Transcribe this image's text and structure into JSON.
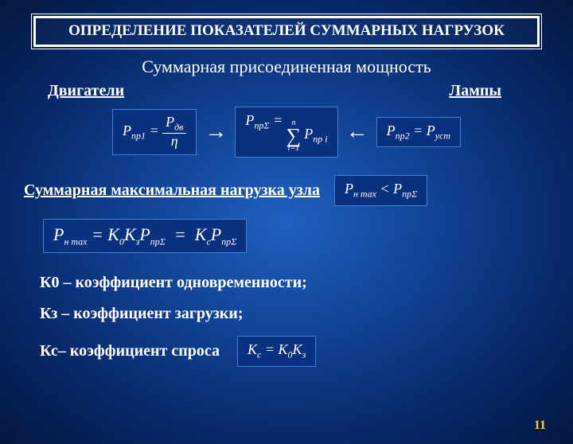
{
  "title": "ОПРЕДЕЛЕНИЕ ПОКАЗАТЕЛЕЙ СУММАРНЫХ НАГРУЗОК",
  "subtitle": "Суммарная присоединенная мощность",
  "labels": {
    "motors": "Двигатели",
    "lamps": "Лампы"
  },
  "formulas": {
    "f1_lhs": "P",
    "f1_lhs_sub": "пр1",
    "f1_num": "P",
    "f1_num_sub": "дв",
    "f1_den": "η",
    "f2_lhs": "P",
    "f2_lhs_sub": "прΣ",
    "f2_sum_top": "n",
    "f2_sum_bot": "i=1",
    "f2_rhs": "P",
    "f2_rhs_sub": "пр i",
    "f3_lhs": "P",
    "f3_lhs_sub": "пр2",
    "f3_rhs": "P",
    "f3_rhs_sub": "уст",
    "sec2": "Суммарная максимальная нагрузка узла",
    "f4_l": "P",
    "f4_l_sub": "н max",
    "f4_r": "P",
    "f4_r_sub": "прΣ",
    "f5_l": "P",
    "f5_l_sub": "н max",
    "f5_m1": "K",
    "f5_m1_sub": "0",
    "f5_m2": "K",
    "f5_m2_sub": "з",
    "f5_m3": "P",
    "f5_m3_sub": "прΣ",
    "f5_r1": "K",
    "f5_r1_sub": "с",
    "f5_r2": "P",
    "f5_r2_sub": "прΣ",
    "f6_l": "K",
    "f6_l_sub": "с",
    "f6_m": "K",
    "f6_m_sub": "0",
    "f6_r": "K",
    "f6_r_sub": "з"
  },
  "defs": {
    "d1": "К0 – коэффициент одновременности;",
    "d2": "Кз – коэффициент загрузки;",
    "d3": "Кс– коэффициент спроса"
  },
  "page": "11",
  "colors": {
    "accent": "#ffcc33",
    "box_bg": "#0a3080",
    "box_border": "#4080d0"
  }
}
